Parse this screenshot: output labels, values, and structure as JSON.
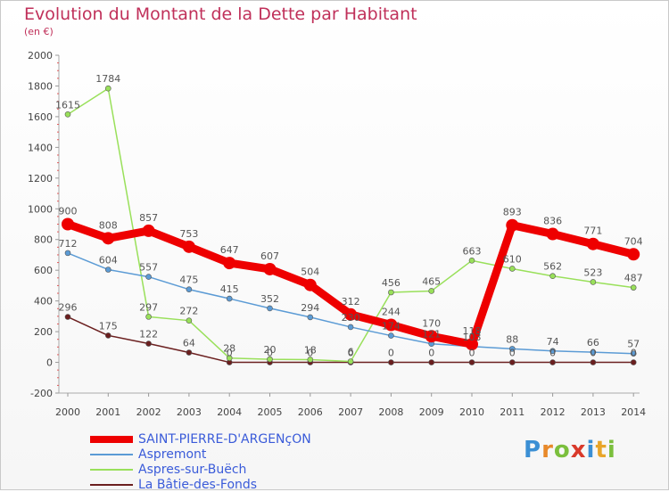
{
  "title": "Evolution du Montant de la Dette par Habitant",
  "unit": "(en €)",
  "logo": {
    "letters": [
      "P",
      "r",
      "o",
      "x",
      "i",
      "t",
      "i"
    ]
  },
  "chart_data": {
    "type": "line",
    "x": [
      "2000",
      "2001",
      "2002",
      "2003",
      "2004",
      "2005",
      "2006",
      "2007",
      "2008",
      "2009",
      "2010",
      "2011",
      "2012",
      "2013",
      "2014"
    ],
    "ylim": [
      -200,
      2000
    ],
    "yticks": [
      -200,
      0,
      200,
      400,
      600,
      800,
      1000,
      1200,
      1400,
      1600,
      1800,
      2000
    ],
    "grid": false,
    "legend_position": "bottom-left",
    "series": [
      {
        "name": "SAINT-PIERRE-D'ARGENçON",
        "color": "#ee0000",
        "labelColor": "#555555",
        "values": [
          900,
          808,
          857,
          753,
          647,
          607,
          504,
          312,
          244,
          170,
          118,
          893,
          836,
          771,
          704
        ]
      },
      {
        "name": "Aspremont",
        "color": "#5b9bd5",
        "labelColor": "#555555",
        "values": [
          712,
          604,
          557,
          475,
          415,
          352,
          294,
          230,
          174,
          121,
          103,
          88,
          74,
          66,
          57
        ]
      },
      {
        "name": "Aspres-sur-Buëch",
        "color": "#99e05a",
        "labelColor": "#555555",
        "values": [
          1615,
          1784,
          297,
          272,
          28,
          20,
          18,
          6,
          456,
          465,
          663,
          610,
          562,
          523,
          487
        ]
      },
      {
        "name": "La Bâtie-des-Fonds",
        "color": "#6b1f1f",
        "labelColor": "#555555",
        "values": [
          296,
          175,
          122,
          64,
          0,
          0,
          0,
          0,
          0,
          0,
          0,
          0,
          0,
          0,
          0
        ]
      }
    ]
  }
}
